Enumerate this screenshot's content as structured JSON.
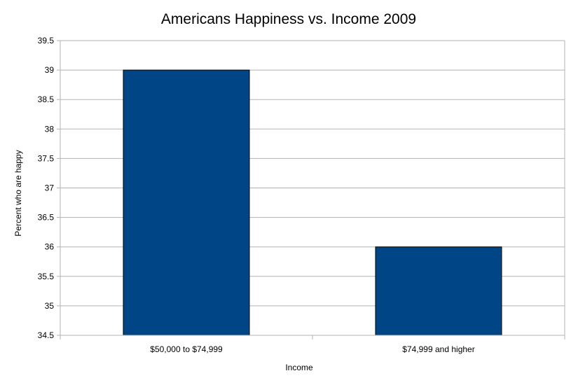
{
  "chart_data": {
    "type": "bar",
    "title": "Americans Happiness vs. Income 2009",
    "xlabel": "Income",
    "ylabel": "Percent who are happy",
    "categories": [
      "$50,000 to $74,999",
      "$74,999 and higher"
    ],
    "values": [
      39,
      36
    ],
    "ylim": [
      34.5,
      39.5
    ],
    "yticks": [
      "34.5",
      "35",
      "35.5",
      "36",
      "36.5",
      "37",
      "37.5",
      "38",
      "38.5",
      "39",
      "39.5"
    ],
    "grid": true,
    "legend": "none",
    "bar_color": "#004586"
  }
}
